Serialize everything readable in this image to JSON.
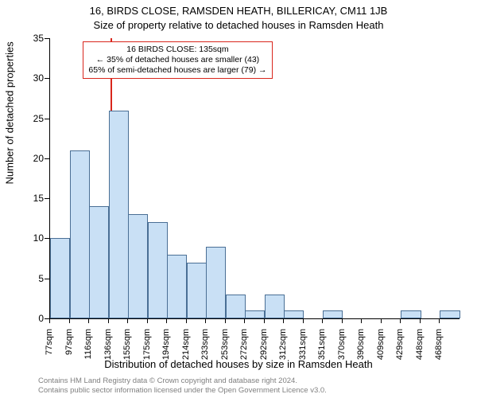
{
  "title_main": "16, BIRDS CLOSE, RAMSDEN HEATH, BILLERICAY, CM11 1JB",
  "title_sub": "Size of property relative to detached houses in Ramsden Heath",
  "ylabel": "Number of detached properties",
  "xlabel": "Distribution of detached houses by size in Ramsden Heath",
  "chart": {
    "type": "histogram",
    "ylim": [
      0,
      35
    ],
    "ytick_step": 5,
    "xtick_labels": [
      "77sqm",
      "97sqm",
      "116sqm",
      "136sqm",
      "155sqm",
      "175sqm",
      "194sqm",
      "214sqm",
      "233sqm",
      "253sqm",
      "272sqm",
      "292sqm",
      "312sqm",
      "331sqm",
      "351sqm",
      "370sqm",
      "390sqm",
      "409sqm",
      "429sqm",
      "448sqm",
      "468sqm"
    ],
    "values": [
      10,
      21,
      14,
      26,
      13,
      12,
      8,
      7,
      9,
      3,
      1,
      3,
      1,
      0,
      1,
      0,
      0,
      0,
      1,
      0,
      1
    ],
    "bar_fill": "#c9e0f5",
    "bar_border": "#4a6f95",
    "background_color": "#ffffff",
    "axis_color": "#000000"
  },
  "marker": {
    "color": "#d9261c",
    "x_label_ref": "135sqm",
    "annot_line1": "16 BIRDS CLOSE: 135sqm",
    "annot_line2": "← 35% of detached houses are smaller (43)",
    "annot_line3": "65% of semi-detached houses are larger (79) →"
  },
  "footer_line1": "Contains HM Land Registry data © Crown copyright and database right 2024.",
  "footer_line2": "Contains public sector information licensed under the Open Government Licence v3.0."
}
